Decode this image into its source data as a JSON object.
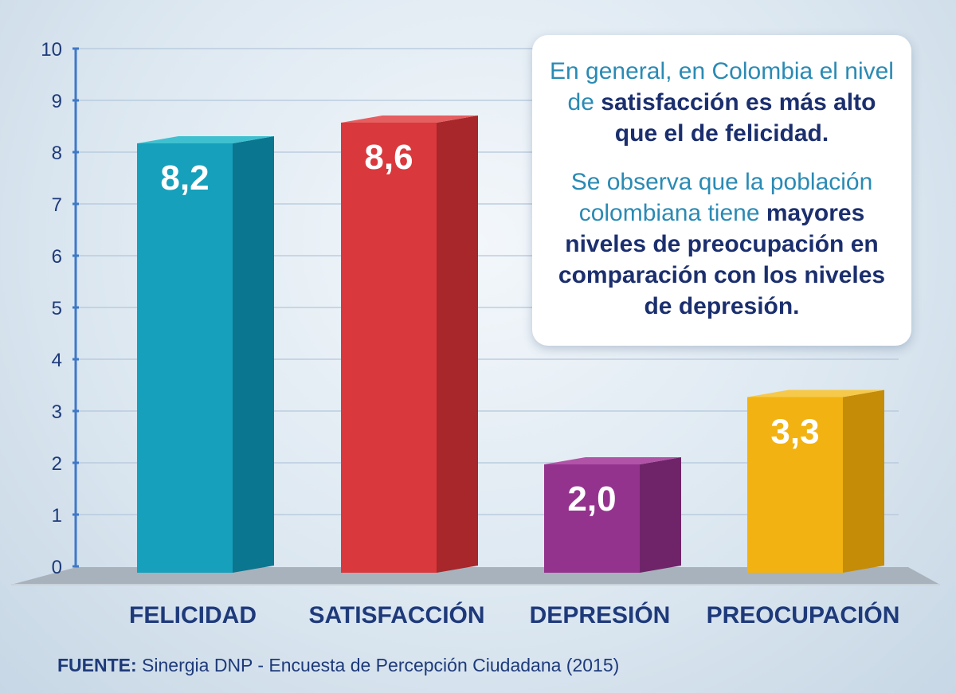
{
  "chart_data": {
    "type": "bar",
    "categories": [
      "FELICIDAD",
      "SATISFACCIÓN",
      "DEPRESIÓN",
      "PREOCUPACIÓN"
    ],
    "values": [
      8.2,
      8.6,
      2.0,
      3.3
    ],
    "value_labels": [
      "8,2",
      "8,6",
      "2,0",
      "3,3"
    ],
    "colors": [
      {
        "front": "#16a0bb",
        "side": "#0b7690",
        "top": "#3fc0d0"
      },
      {
        "front": "#d9383d",
        "side": "#a7272b",
        "top": "#e55e60"
      },
      {
        "front": "#94338d",
        "side": "#6f2469",
        "top": "#b154a7"
      },
      {
        "front": "#f2b211",
        "side": "#c58c08",
        "top": "#f7c94a"
      }
    ],
    "ylim": [
      0,
      10
    ],
    "yticks": [
      "0",
      "1",
      "2",
      "3",
      "4",
      "5",
      "6",
      "7",
      "8",
      "9",
      "10"
    ],
    "grid": true,
    "xlabel": "",
    "ylabel": ""
  },
  "annotation": {
    "p1_pre": "En general, en Colombia el nivel de ",
    "p1_bold": "satisfacción es más alto que el de felicidad.",
    "p2_pre": "Se observa que la población colombiana tiene ",
    "p2_bold": "mayores niveles de preocupación en comparación con los niveles de depresión."
  },
  "source": {
    "label": "FUENTE:",
    "text": " Sinergia DNP - Encuesta de Percepción Ciudadana (2015)"
  },
  "style": {
    "axis_color": "#3f78c6",
    "grid_color": "#b4c6db",
    "floor_color": "#a8b2bc",
    "floor_edge": "#c9d1d9"
  }
}
